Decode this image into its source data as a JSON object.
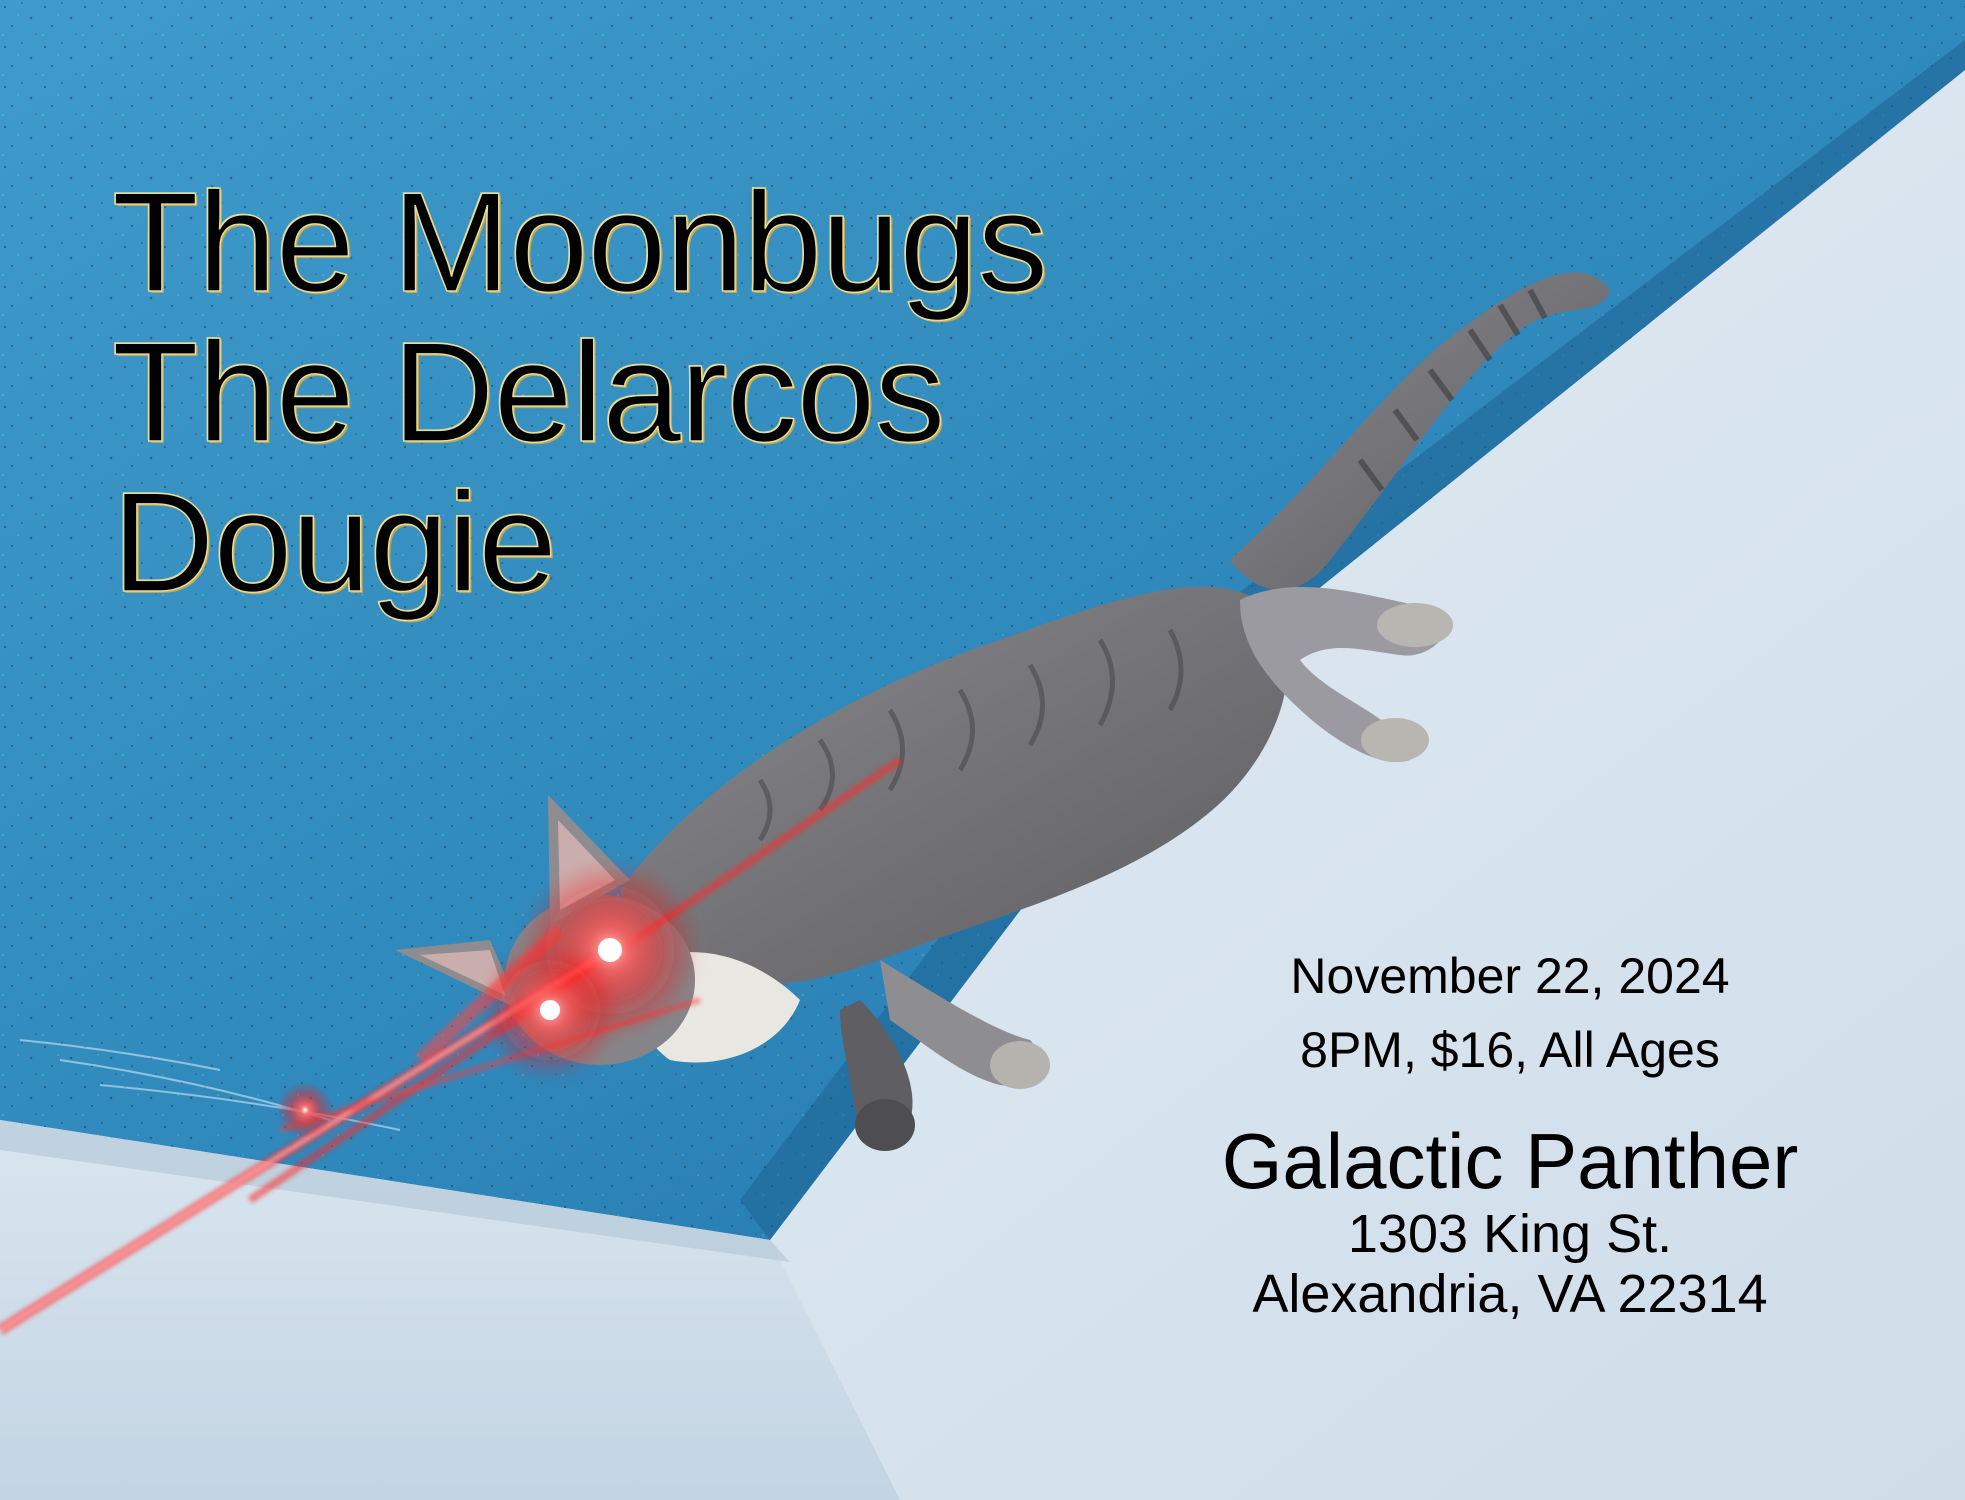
{
  "poster": {
    "bands": [
      "The Moonbugs",
      "The Delarcos",
      "Dougie"
    ],
    "date": "November 22, 2024",
    "details": "8PM, $16, All Ages",
    "venue": {
      "name": "Galactic Panther",
      "street": "1303 King St.",
      "city": "Alexandria, VA 22314"
    }
  },
  "colors": {
    "wall_blue": "#2e8bbd",
    "wall_white": "#dbe8f2",
    "laser_red": "#ff2a2a",
    "title_outline": "#e8dd9a",
    "text": "#000000"
  },
  "image": {
    "subject": "cat-photo-with-laser-eyes"
  }
}
